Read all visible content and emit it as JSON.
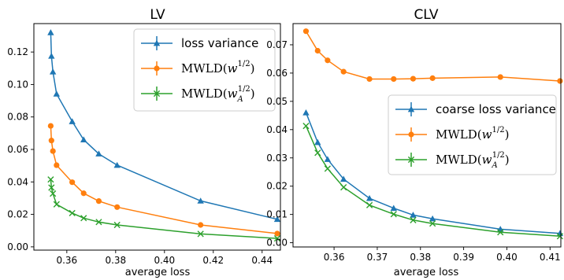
{
  "colors": {
    "blue": "#1f77b4",
    "orange": "#ff7f0e",
    "green": "#2ca02c"
  },
  "chart_data": [
    {
      "type": "line",
      "title": "LV",
      "xlabel": "average loss",
      "ylabel": "",
      "xlim": [
        0.3465,
        0.4475
      ],
      "ylim": [
        -0.002,
        0.1375
      ],
      "xticks": [
        0.36,
        0.38,
        0.4,
        0.42,
        0.44
      ],
      "xtick_labels": [
        "0.36",
        "0.38",
        "0.40",
        "0.42",
        "0.44"
      ],
      "yticks": [
        0.0,
        0.02,
        0.04,
        0.06,
        0.08,
        0.1,
        0.12
      ],
      "ytick_labels": [
        "0.00",
        "0.02",
        "0.04",
        "0.06",
        "0.08",
        "0.10",
        "0.12"
      ],
      "legend_position": "top-right",
      "series": [
        {
          "name": "loss variance",
          "color": "blue",
          "marker": "triangle",
          "points": [
            [
              0.3534,
              0.132
            ],
            [
              0.3537,
              0.1175
            ],
            [
              0.3543,
              0.1078
            ],
            [
              0.3558,
              0.0942
            ],
            [
              0.3622,
              0.0772
            ],
            [
              0.3669,
              0.066
            ],
            [
              0.3731,
              0.0573
            ],
            [
              0.3806,
              0.0503
            ],
            [
              0.4148,
              0.0283
            ],
            [
              0.4462,
              0.017
            ]
          ]
        },
        {
          "name": "MWLD(w^{1/2})",
          "color": "orange",
          "marker": "circle",
          "points": [
            [
              0.3534,
              0.0745
            ],
            [
              0.3537,
              0.0655
            ],
            [
              0.3543,
              0.059
            ],
            [
              0.3558,
              0.0503
            ],
            [
              0.3622,
              0.0398
            ],
            [
              0.3669,
              0.033
            ],
            [
              0.3731,
              0.0282
            ],
            [
              0.3806,
              0.0245
            ],
            [
              0.4148,
              0.0135
            ],
            [
              0.4462,
              0.0082
            ]
          ]
        },
        {
          "name": "MWLD(w_A^{1/2})",
          "color": "green",
          "marker": "x",
          "points": [
            [
              0.3534,
              0.0415
            ],
            [
              0.3537,
              0.0365
            ],
            [
              0.3543,
              0.0328
            ],
            [
              0.3558,
              0.0262
            ],
            [
              0.3622,
              0.0208
            ],
            [
              0.3669,
              0.0177
            ],
            [
              0.3731,
              0.0153
            ],
            [
              0.3806,
              0.0135
            ],
            [
              0.4148,
              0.008
            ],
            [
              0.4462,
              0.0052
            ]
          ]
        }
      ]
    },
    {
      "type": "line",
      "title": "CLV",
      "xlabel": "average loss",
      "ylabel": "",
      "xlim": [
        0.3505,
        0.4125
      ],
      "ylim": [
        -0.0015,
        0.0775
      ],
      "xticks": [
        0.36,
        0.37,
        0.38,
        0.39,
        0.4,
        0.41
      ],
      "xtick_labels": [
        "0.36",
        "0.37",
        "0.38",
        "0.39",
        "0.40",
        "0.41"
      ],
      "yticks": [
        0.0,
        0.01,
        0.02,
        0.03,
        0.04,
        0.05,
        0.06,
        0.07
      ],
      "ytick_labels": [
        "0.00",
        "0.01",
        "0.02",
        "0.03",
        "0.04",
        "0.05",
        "0.06",
        "0.07"
      ],
      "legend_position": "center-right",
      "series": [
        {
          "name": "coarse loss variance",
          "color": "blue",
          "marker": "triangle",
          "points": [
            [
              0.3535,
              0.046
            ],
            [
              0.3562,
              0.0355
            ],
            [
              0.3585,
              0.0295
            ],
            [
              0.3622,
              0.0225
            ],
            [
              0.3682,
              0.0157
            ],
            [
              0.3738,
              0.0122
            ],
            [
              0.3783,
              0.0098
            ],
            [
              0.3828,
              0.0085
            ],
            [
              0.3985,
              0.0048
            ],
            [
              0.4123,
              0.0033
            ]
          ]
        },
        {
          "name": "MWLD(w^{1/2})",
          "color": "orange",
          "marker": "circle",
          "points": [
            [
              0.3535,
              0.0748
            ],
            [
              0.3562,
              0.0679
            ],
            [
              0.3585,
              0.0645
            ],
            [
              0.3622,
              0.0605
            ],
            [
              0.3682,
              0.0579
            ],
            [
              0.3738,
              0.0579
            ],
            [
              0.3783,
              0.058
            ],
            [
              0.3828,
              0.0582
            ],
            [
              0.3985,
              0.0586
            ],
            [
              0.4123,
              0.0572
            ]
          ]
        },
        {
          "name": "MWLD(w_A^{1/2})",
          "color": "green",
          "marker": "x",
          "points": [
            [
              0.3535,
              0.0413
            ],
            [
              0.3562,
              0.0318
            ],
            [
              0.3585,
              0.0262
            ],
            [
              0.3622,
              0.0196
            ],
            [
              0.3682,
              0.0133
            ],
            [
              0.3738,
              0.0101
            ],
            [
              0.3783,
              0.008
            ],
            [
              0.3828,
              0.0068
            ],
            [
              0.3985,
              0.0037
            ],
            [
              0.4123,
              0.0023
            ]
          ]
        }
      ]
    }
  ]
}
